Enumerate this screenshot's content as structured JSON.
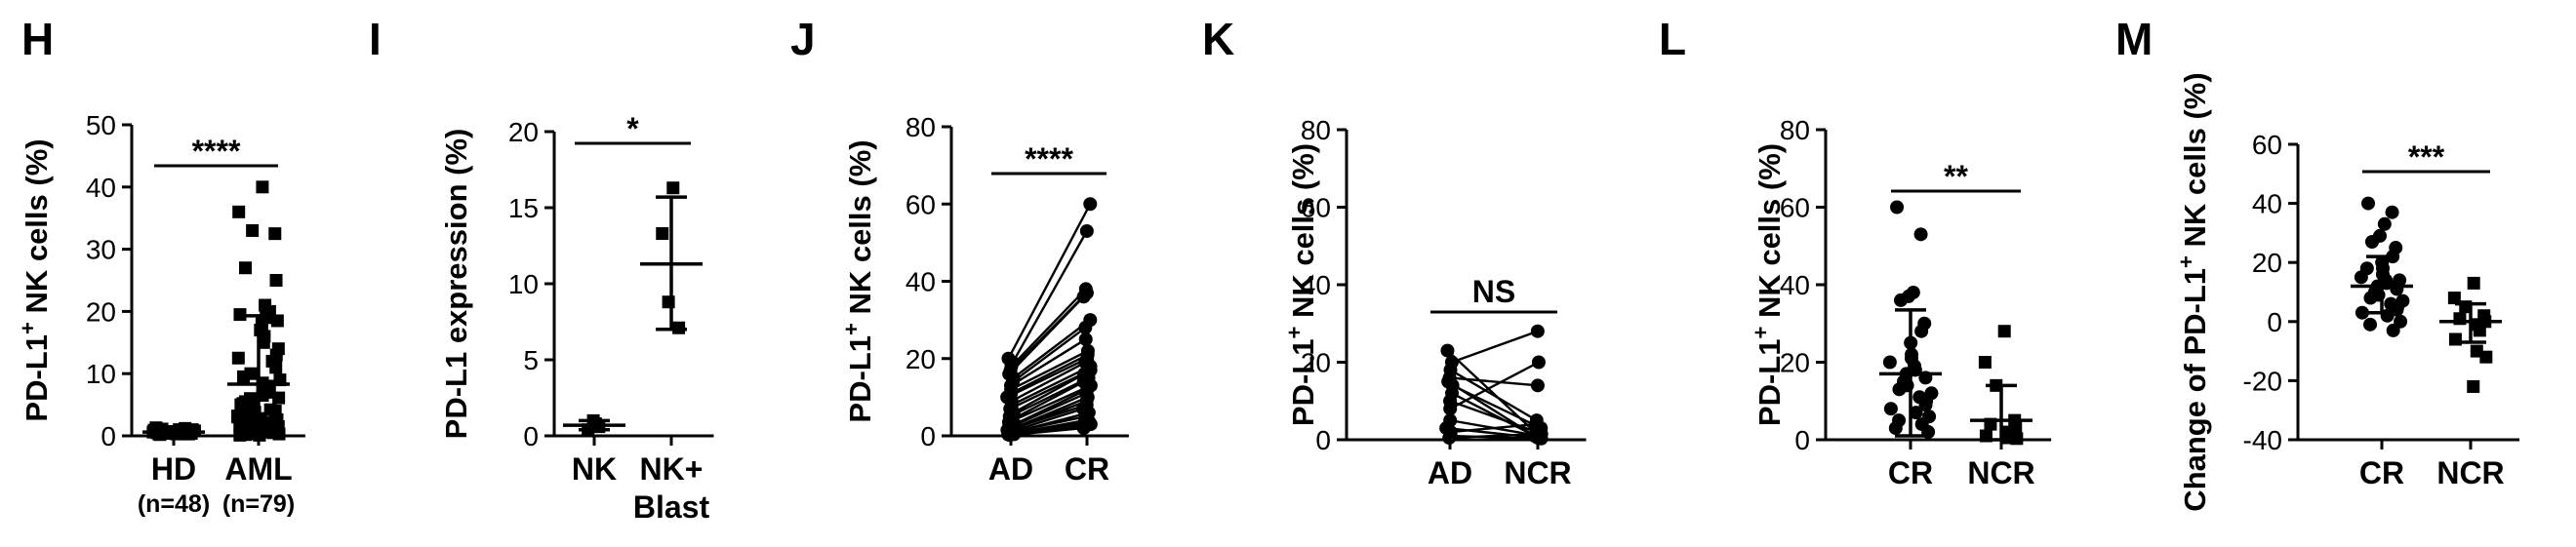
{
  "figure": {
    "panels": [
      "H",
      "I",
      "J",
      "K",
      "L",
      "M"
    ]
  },
  "chart_data": [
    {
      "panel": "H",
      "type": "scatter",
      "ylabel": "PD-L1+ NK cells (%)",
      "ylabel_main": "PD-L1",
      "ylabel_sup": "+",
      "ylabel_rest": " NK cells (%)",
      "ylim": [
        0,
        50
      ],
      "yticks": [
        0,
        10,
        20,
        30,
        40,
        50
      ],
      "categories": [
        "HD",
        "AML"
      ],
      "sublabels": [
        "(n=48)",
        "(n=79)"
      ],
      "marker": "square",
      "groups": [
        {
          "name": "HD",
          "mean": 0.6,
          "sd_low": 0.2,
          "sd_high": 1.0,
          "values": [
            0.2,
            0.3,
            0.3,
            0.4,
            0.4,
            0.4,
            0.5,
            0.5,
            0.5,
            0.5,
            0.6,
            0.6,
            0.6,
            0.6,
            0.7,
            0.7,
            0.7,
            0.7,
            0.8,
            0.8,
            0.8,
            0.9,
            0.9,
            1.0,
            1.0,
            1.1,
            1.2,
            0.3,
            0.4,
            0.5,
            0.6,
            0.5,
            0.4,
            0.6,
            0.7,
            0.5,
            0.6,
            0.8,
            0.4,
            0.5,
            0.6,
            0.3,
            0.7,
            0.9,
            0.5,
            0.6,
            0.8,
            1.3
          ]
        },
        {
          "name": "AML",
          "mean": 8.3,
          "sd_low": 0,
          "sd_high": 19.3,
          "values": [
            40,
            36,
            33,
            32.5,
            27,
            25,
            21,
            20,
            19.5,
            19,
            18.5,
            18,
            17,
            16,
            15,
            14,
            13,
            12.5,
            12,
            11,
            10,
            9.5,
            9,
            8.5,
            8,
            7.5,
            7,
            6.5,
            6,
            5.5,
            5,
            4.5,
            4,
            3.8,
            3.5,
            3.2,
            3,
            2.8,
            2.5,
            2.3,
            2,
            1.8,
            1.6,
            1.5,
            1.4,
            1.3,
            1.2,
            1.1,
            1,
            0.9,
            0.8,
            0.7,
            0.6,
            0.5,
            0.4,
            0.3,
            0.3,
            0.2,
            0.2,
            0.1,
            0.1,
            2.2,
            3.3,
            4.2,
            1.7,
            0.9,
            1.4,
            2.6,
            5.2,
            6.1,
            0.6,
            0.8,
            1.1,
            0.4,
            2.1,
            1.2,
            0.5,
            0.7,
            1.6
          ]
        }
      ],
      "significance": "****"
    },
    {
      "panel": "I",
      "type": "scatter",
      "ylabel": "PD-L1 expression (%)",
      "ylabel_main": "PD-L1 expression (%)",
      "ylabel_sup": "",
      "ylabel_rest": "",
      "ylim": [
        0,
        20
      ],
      "yticks": [
        0,
        5,
        10,
        15,
        20
      ],
      "categories": [
        "NK",
        "NK+"
      ],
      "sublabels": [
        "",
        "Blast"
      ],
      "marker": "square",
      "groups": [
        {
          "name": "NK",
          "mean": 0.7,
          "sd_low": 0.4,
          "sd_high": 1.0,
          "values": [
            0.4,
            0.6,
            0.8,
            1.0
          ]
        },
        {
          "name": "NK+ Blast",
          "mean": 11.3,
          "sd_low": 7.0,
          "sd_high": 15.7,
          "values": [
            16.3,
            13.3,
            8.8,
            7.1
          ]
        }
      ],
      "significance": "*"
    },
    {
      "panel": "J",
      "type": "line",
      "ylabel": "PD-L1+ NK cells (%)",
      "ylabel_main": "PD-L1",
      "ylabel_sup": "+",
      "ylabel_rest": " NK cells (%)",
      "ylim": [
        0,
        80
      ],
      "yticks": [
        0,
        20,
        40,
        60,
        80
      ],
      "categories": [
        "AD",
        "CR"
      ],
      "marker": "circle",
      "pairs": [
        [
          20,
          60
        ],
        [
          19,
          53
        ],
        [
          18,
          38
        ],
        [
          17,
          37
        ],
        [
          16,
          36
        ],
        [
          15,
          30
        ],
        [
          14,
          28
        ],
        [
          13,
          25
        ],
        [
          12,
          22
        ],
        [
          11,
          21
        ],
        [
          10,
          20
        ],
        [
          9,
          19
        ],
        [
          8,
          18
        ],
        [
          7,
          17
        ],
        [
          6,
          16
        ],
        [
          5,
          15
        ],
        [
          4,
          14
        ],
        [
          3.5,
          13
        ],
        [
          3,
          12
        ],
        [
          2.5,
          11
        ],
        [
          2,
          10
        ],
        [
          1.8,
          9
        ],
        [
          1.5,
          8
        ],
        [
          1.2,
          7
        ],
        [
          1,
          6
        ],
        [
          0.8,
          5
        ],
        [
          0.6,
          4
        ],
        [
          0.5,
          3.5
        ],
        [
          0.4,
          3
        ],
        [
          0.3,
          2.5
        ],
        [
          0.2,
          2
        ]
      ],
      "significance": "****"
    },
    {
      "panel": "K",
      "type": "line",
      "ylabel": "PD-L1+ NK cells (%)",
      "ylabel_main": "PD-L1",
      "ylabel_sup": "+",
      "ylabel_rest": " NK cells (%)",
      "ylim": [
        0,
        80
      ],
      "yticks": [
        0,
        20,
        40,
        60,
        80
      ],
      "categories": [
        "AD",
        "NCR"
      ],
      "marker": "circle",
      "pairs": [
        [
          23,
          0.5
        ],
        [
          20,
          28
        ],
        [
          18,
          5
        ],
        [
          16,
          14
        ],
        [
          15,
          1
        ],
        [
          14,
          3
        ],
        [
          12,
          0.8
        ],
        [
          10,
          2
        ],
        [
          8,
          20
        ],
        [
          5,
          1
        ],
        [
          3,
          0.5
        ],
        [
          2,
          4
        ],
        [
          1,
          0.3
        ],
        [
          0.5,
          1.5
        ]
      ],
      "significance": "NS"
    },
    {
      "panel": "L",
      "type": "scatter",
      "ylabel": "PD-L1+ NK cells (%)",
      "ylabel_main": "PD-L1",
      "ylabel_sup": "+",
      "ylabel_rest": " NK cells (%)",
      "ylim": [
        0,
        80
      ],
      "yticks": [
        0,
        20,
        40,
        60,
        80
      ],
      "categories": [
        "CR",
        "NCR"
      ],
      "groups": [
        {
          "name": "CR",
          "marker": "circle",
          "mean": 17,
          "sd_low": 1,
          "sd_high": 33.5,
          "values": [
            60,
            53,
            38,
            37,
            36,
            30,
            28,
            25,
            22,
            21,
            20,
            19,
            18,
            17,
            16,
            15,
            14,
            13,
            12,
            11,
            10,
            9,
            8,
            7,
            6,
            5,
            4,
            3,
            2
          ]
        },
        {
          "name": "NCR",
          "marker": "square",
          "mean": 5,
          "sd_low": 0,
          "sd_high": 14,
          "values": [
            28,
            20,
            14,
            5,
            4,
            3,
            2,
            1.5,
            1,
            0.5,
            0.3
          ]
        }
      ],
      "significance": "**"
    },
    {
      "panel": "M",
      "type": "scatter",
      "ylabel": "Change of PD-L1+ NK cells (%)",
      "ylabel_main": "Change of PD-L1",
      "ylabel_sup": "+",
      "ylabel_rest": " NK cells (%)",
      "ylim": [
        -40,
        60
      ],
      "yticks": [
        -40,
        -20,
        0,
        20,
        40,
        60
      ],
      "categories": [
        "CR",
        "NCR"
      ],
      "groups": [
        {
          "name": "CR",
          "marker": "circle",
          "mean": 12,
          "sd_low": 3,
          "sd_high": 22,
          "values": [
            40,
            37,
            33,
            29,
            27,
            25,
            22,
            20,
            18,
            16,
            15,
            14,
            13,
            12,
            11,
            10,
            9,
            8,
            7,
            6,
            5,
            4,
            3,
            2,
            0,
            -1,
            -3,
            18,
            14
          ]
        },
        {
          "name": "NCR",
          "marker": "square",
          "mean": 0,
          "sd_low": -7,
          "sd_high": 6,
          "values": [
            13,
            8,
            5,
            2,
            1,
            0,
            -1,
            -3,
            -6,
            -10,
            -12,
            -22
          ]
        }
      ],
      "significance": "***"
    }
  ]
}
